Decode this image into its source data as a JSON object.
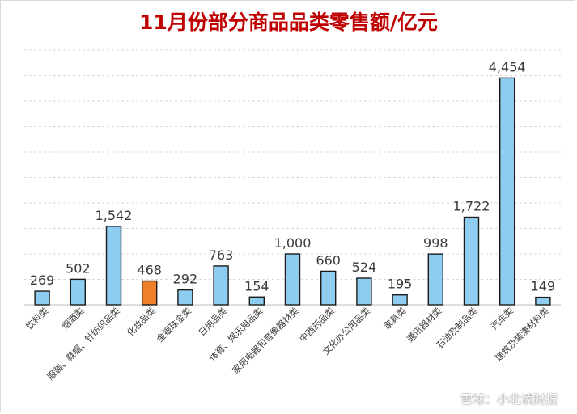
{
  "chart_data": {
    "type": "bar",
    "title": "11月份部分商品品类零售额/亿元",
    "categories": [
      "饮料类",
      "烟酒类",
      "服装、鞋帽、针纺织品类",
      "化妆品类",
      "金银珠宝类",
      "日用品类",
      "体育、娱乐用品类",
      "家用电器和音像器材类",
      "中西药品类",
      "文化办公用品类",
      "家具类",
      "通讯器材类",
      "石油及制品类",
      "汽车类",
      "建筑及装潢材料类"
    ],
    "values": [
      269,
      502,
      1542,
      468,
      292,
      763,
      154,
      1000,
      660,
      524,
      195,
      998,
      1722,
      4454,
      149
    ],
    "value_labels": [
      "269",
      "502",
      "1,542",
      "468",
      "292",
      "763",
      "154",
      "1,000",
      "660",
      "524",
      "195",
      "998",
      "1,722",
      "4,454",
      "149"
    ],
    "highlight_index": 3,
    "colors": {
      "bar": "#8ecdf0",
      "highlight": "#f07f2a",
      "outline": "#1a1a1a",
      "grid": "#d9d9d9",
      "title": "#c00000"
    },
    "ylim": [
      0,
      5000
    ],
    "grid": true,
    "legend": "none",
    "xlabel": "",
    "ylabel": ""
  },
  "watermark": "雪球：小北读财报"
}
